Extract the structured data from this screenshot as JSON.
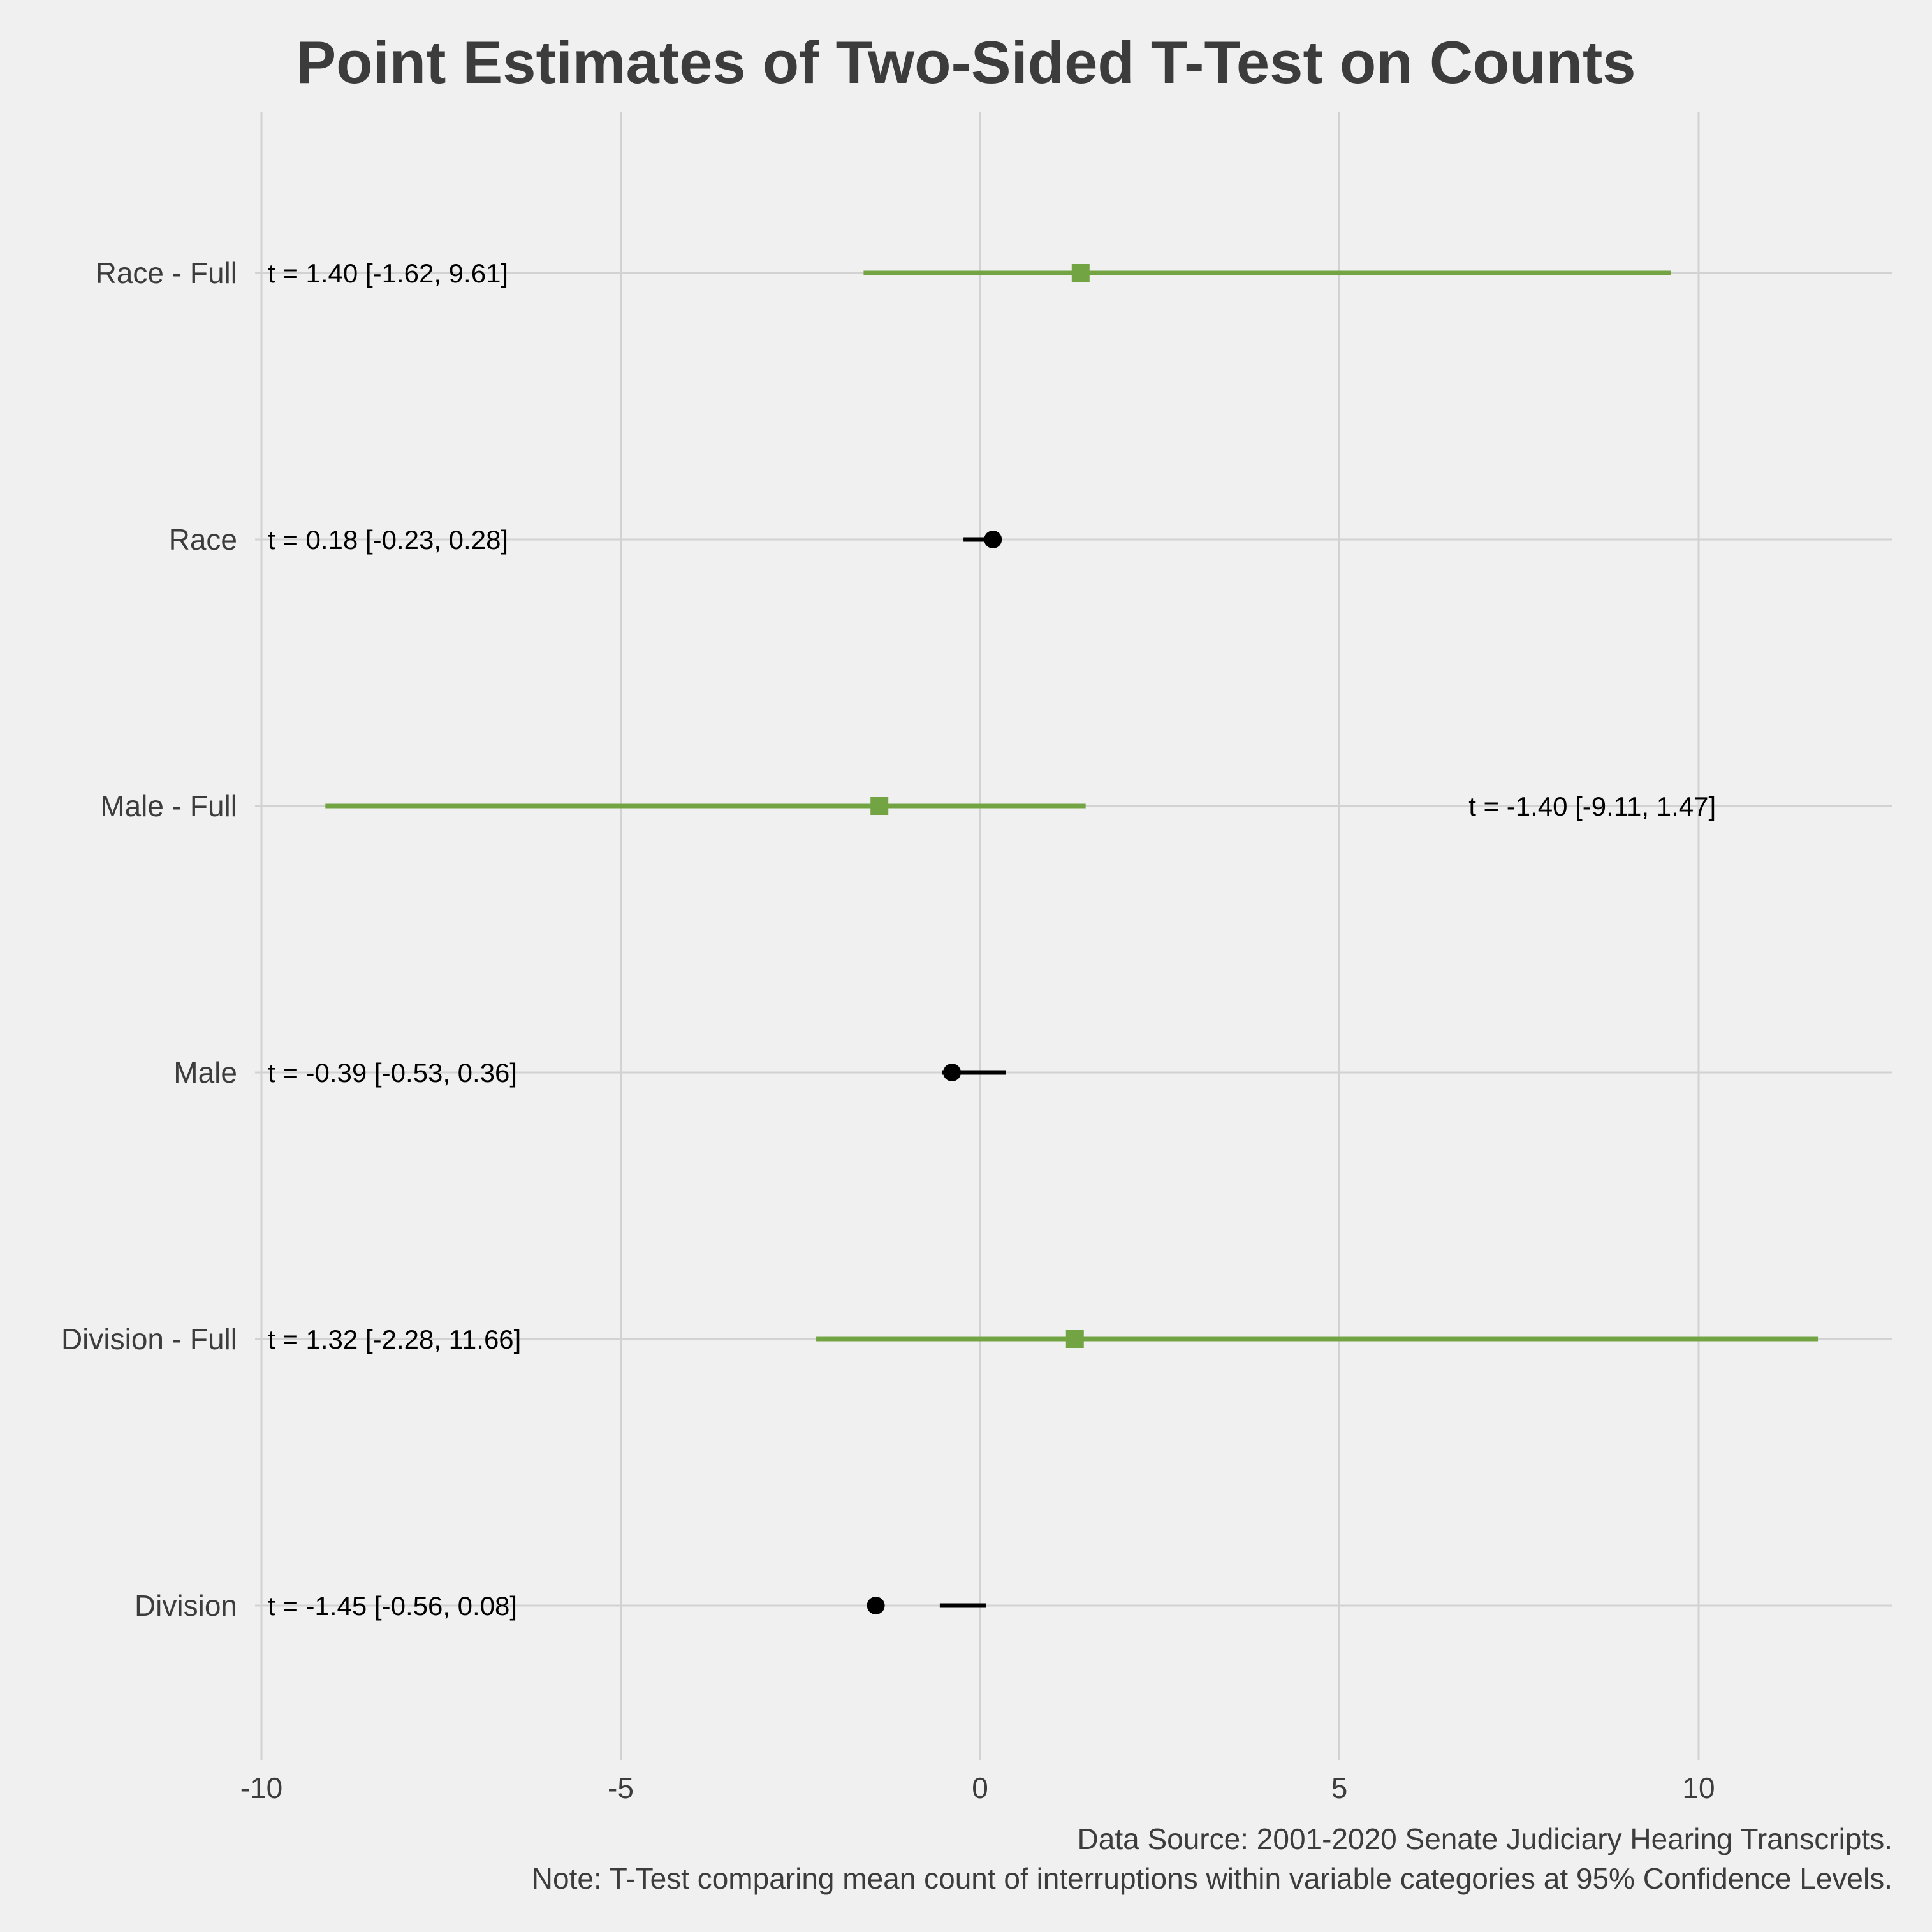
{
  "chart_data": {
    "type": "scatter",
    "title": "Point Estimates of Two-Sided T-Test on Counts",
    "xlabel": "",
    "ylabel": "",
    "xlim": [
      -10,
      13
    ],
    "xticks": [
      -10,
      -5,
      0,
      5,
      10
    ],
    "xtick_labels": [
      "-10",
      "-5",
      "0",
      "5",
      "10"
    ],
    "grid": true,
    "categories": [
      "Race - Full",
      "Race",
      "Male - Full",
      "Male",
      "Division - Full",
      "Division"
    ],
    "points": [
      {
        "category": "Race - Full",
        "estimate": 1.4,
        "ci": [
          -1.62,
          9.61
        ],
        "group": "full",
        "label": "t = 1.40 [-1.62, 9.61]",
        "label_x": -10
      },
      {
        "category": "Race",
        "estimate": 0.18,
        "ci": [
          -0.23,
          0.28
        ],
        "group": "standard",
        "label": "t = 0.18 [-0.23, 0.28]",
        "label_x": -10
      },
      {
        "category": "Male - Full",
        "estimate": -1.4,
        "ci": [
          -9.11,
          1.47
        ],
        "group": "full",
        "label": "t = -1.40 [-9.11, 1.47]",
        "label_x": 6
      },
      {
        "category": "Male",
        "estimate": -0.39,
        "ci": [
          -0.53,
          0.36
        ],
        "group": "standard",
        "label": "t = -0.39 [-0.53, 0.36]",
        "label_x": -10
      },
      {
        "category": "Division - Full",
        "estimate": 1.32,
        "ci": [
          -2.28,
          11.66
        ],
        "group": "full",
        "label": "t = 1.32 [-2.28, 11.66]",
        "label_x": -10
      },
      {
        "category": "Division",
        "estimate": -1.45,
        "ci": [
          -0.56,
          0.08
        ],
        "group": "standard",
        "label": "t = -1.45 [-0.56, 0.08]",
        "label_x": -10
      }
    ],
    "colors": {
      "full": "#73a443",
      "standard": "#000000"
    },
    "markers": {
      "full": "square",
      "standard": "circle"
    },
    "caption": [
      "Data Source: 2001-2020 Senate Judiciary Hearing Transcripts.",
      "Note: T-Test comparing mean count of interruptions within variable categories at 95% Confidence Levels."
    ]
  }
}
